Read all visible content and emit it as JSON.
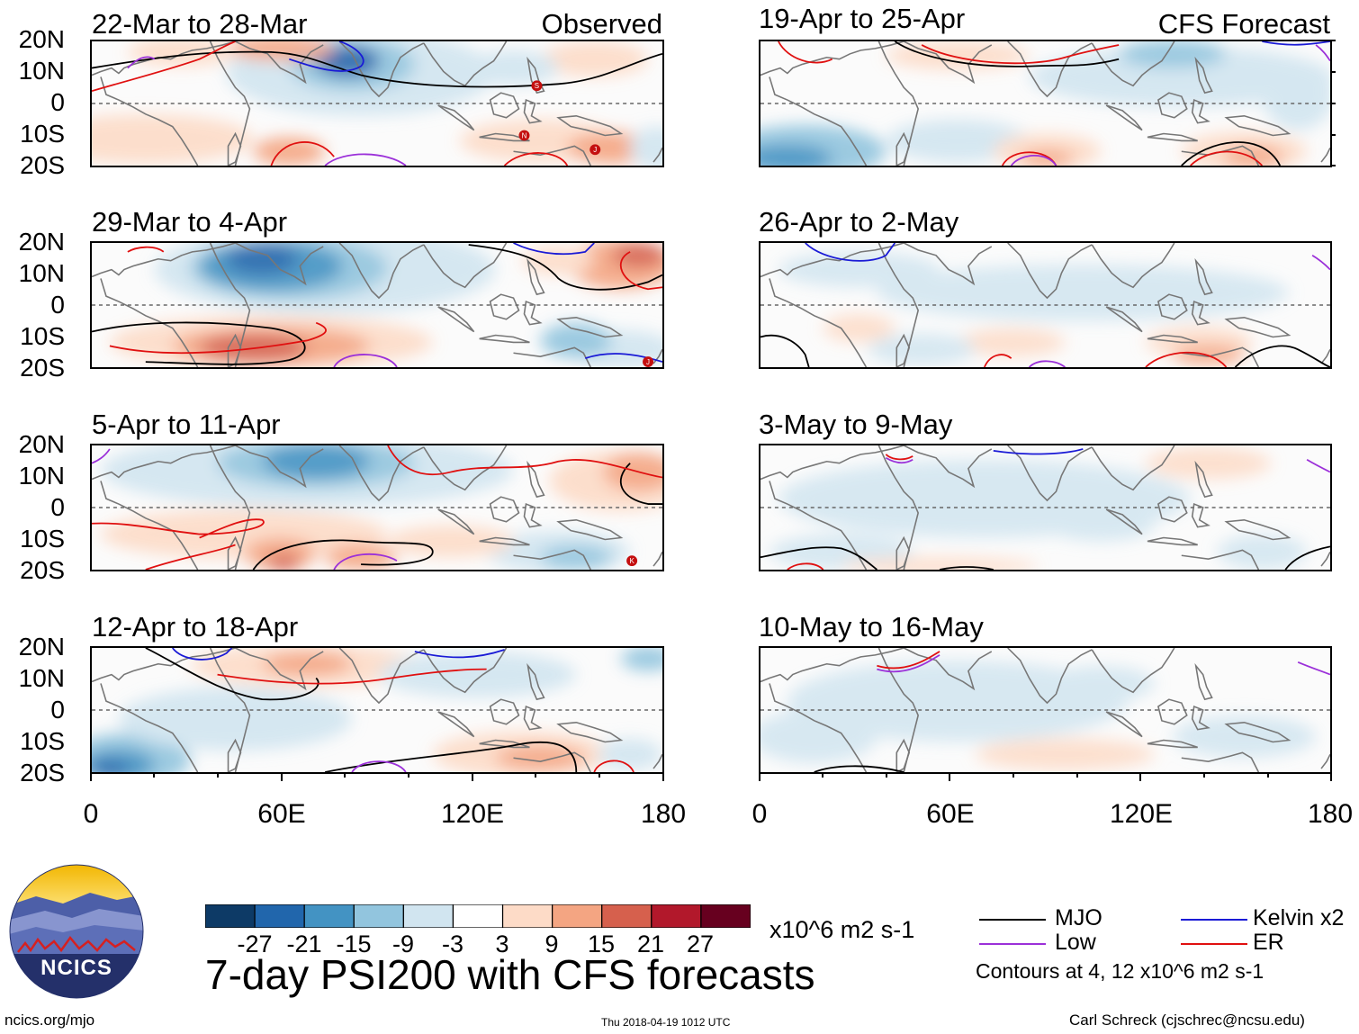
{
  "panels": [
    {
      "title": "22-Mar to 28-Mar",
      "tag": "Observed"
    },
    {
      "title": "29-Mar to 4-Apr",
      "tag": ""
    },
    {
      "title": "5-Apr to 11-Apr",
      "tag": ""
    },
    {
      "title": "12-Apr to 18-Apr",
      "tag": ""
    },
    {
      "title": "19-Apr to 25-Apr",
      "tag": "CFS Forecast"
    },
    {
      "title": "26-Apr to 2-May",
      "tag": ""
    },
    {
      "title": "3-May to 9-May",
      "tag": ""
    },
    {
      "title": "10-May to 16-May",
      "tag": ""
    }
  ],
  "lat_labels": [
    "20N",
    "10N",
    "0",
    "10S",
    "20S"
  ],
  "lon_labels": [
    "0",
    "60E",
    "120E",
    "180"
  ],
  "colorbar": {
    "colors": [
      "#0d3a66",
      "#2166ac",
      "#4393c3",
      "#92c5de",
      "#d1e5f0",
      "#ffffff",
      "#fddbc7",
      "#f4a582",
      "#d6604d",
      "#b2182b",
      "#67001f"
    ],
    "labels": [
      "-27",
      "-21",
      "-15",
      "-9",
      "-3",
      "3",
      "9",
      "15",
      "21",
      "27"
    ],
    "units": "x10^6 m2 s-1"
  },
  "legend": {
    "mjo": {
      "label": "MJO",
      "color": "#000000"
    },
    "kelvin": {
      "label": "Kelvin x2",
      "color": "#1a1ad6"
    },
    "low": {
      "label": "Low",
      "color": "#9b30d9"
    },
    "er": {
      "label": "ER",
      "color": "#e01010"
    },
    "contours_note": "Contours at 4, 12 x10^6 m2 s-1"
  },
  "main_title": "7-day PSI200 with CFS forecasts",
  "logo_text": "NCICS",
  "site": "ncics.org/mjo",
  "timestamp": "Thu 2018-04-19 1012 UTC",
  "credit": "Carl Schreck (cjschrec@ncsu.edu)",
  "storm_letters": [
    "S",
    "N",
    "J",
    "J",
    "K"
  ]
}
